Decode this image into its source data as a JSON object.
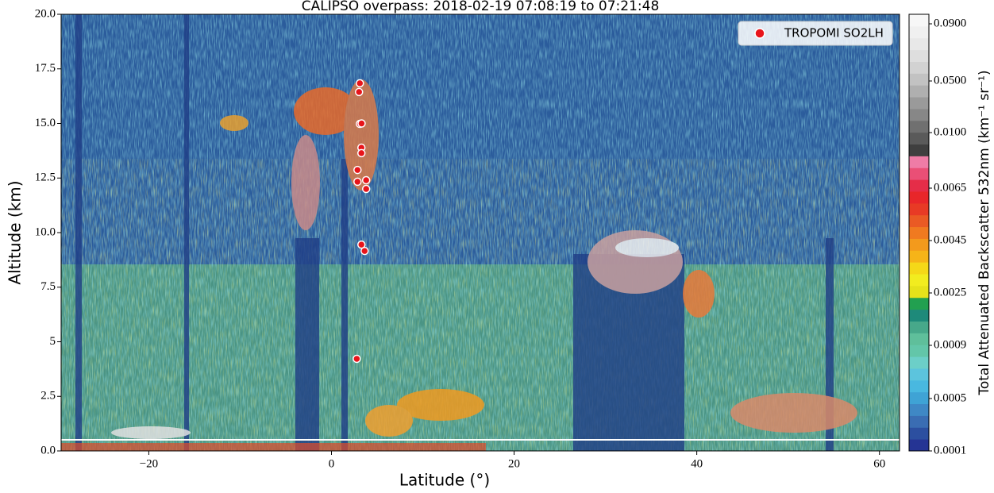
{
  "chart_data": {
    "type": "scatter",
    "title": "CALIPSO overpass: 2018-02-19 07:08:19 to 07:21:48",
    "x_label": "Latitude (°)",
    "y_label": "Altitude (km)",
    "xlim": [
      -29.6,
      62.2
    ],
    "ylim": [
      0,
      20
    ],
    "xticks": [
      {
        "value": -20,
        "label": "−20"
      },
      0,
      20,
      40,
      60
    ],
    "yticks": [
      {
        "value": 0,
        "label": "0.0"
      },
      2.5,
      5,
      7.5,
      {
        "value": 10,
        "label": "10.0"
      },
      12.5,
      {
        "value": 15,
        "label": "15.0"
      },
      17.5,
      {
        "value": 20,
        "label": "20.0"
      }
    ],
    "legend": "upper right",
    "series": [
      {
        "name": "TROPOMI SO2LH",
        "color": "#e8141a",
        "x": [
          3.11,
          3.02,
          3.11,
          3.3,
          3.28,
          3.28,
          2.85,
          2.85,
          3.8,
          3.8,
          3.28,
          3.63,
          2.77
        ],
        "values": [
          16.84,
          16.44,
          14.98,
          15.0,
          13.89,
          13.64,
          12.87,
          12.33,
          12.4,
          12.0,
          9.45,
          9.16,
          4.22
        ]
      }
    ],
    "colorbar": {
      "label": "Total Attenuated Backscatter 532nm (km⁻¹ sr⁻¹)",
      "colors": [
        "#253494",
        "#2c4fa0",
        "#3a6db3",
        "#3f88c5",
        "#3fa3d5",
        "#49b8e0",
        "#5cc4dd",
        "#6ccfc8",
        "#63c6a9",
        "#5fbf9b",
        "#47a88a",
        "#1e8a7a",
        "#22a050",
        "#e6e21a",
        "#f2ec1f",
        "#f5d818",
        "#f6b418",
        "#f39a1c",
        "#f07a20",
        "#ea5a24",
        "#e83a25",
        "#e8262a",
        "#e52d48",
        "#ea4f76",
        "#ef7ca6",
        "#3f3f3f",
        "#5a5a5a",
        "#707070",
        "#878787",
        "#9a9a9a",
        "#afafaf",
        "#c2c2c2",
        "#d2d2d2",
        "#dedede",
        "#e8e8e8",
        "#f0f0f0",
        "#f7f7f7"
      ],
      "ticks": [
        {
          "value": 0.0001,
          "label": "0.0001"
        },
        {
          "value": 0.0005,
          "label": "0.0005"
        },
        {
          "value": 0.0009,
          "label": "0.0009"
        },
        {
          "value": 0.0025,
          "label": "0.0025"
        },
        {
          "value": 0.0045,
          "label": "0.0045"
        },
        {
          "value": 0.0065,
          "label": "0.0065"
        },
        {
          "value": 0.01,
          "label": "0.0100"
        },
        {
          "value": 0.05,
          "label": "0.0500"
        },
        {
          "value": 0.09,
          "label": "0.0900"
        }
      ]
    }
  }
}
